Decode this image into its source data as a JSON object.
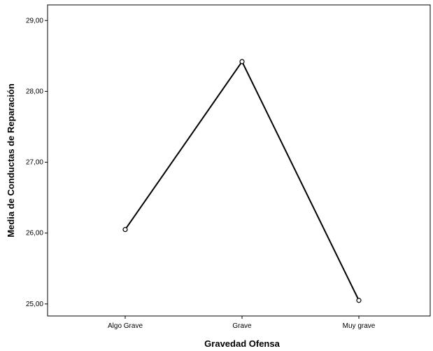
{
  "chart_data": {
    "type": "line",
    "categories": [
      "Algo Grave",
      "Grave",
      "Muy grave"
    ],
    "series": [
      {
        "values": [
          26.05,
          28.42,
          25.05
        ]
      }
    ],
    "xlabel": "Gravedad Ofensa",
    "ylabel": "Media de Conductas de Reparación",
    "ylim": [
      24.83,
      29.22
    ],
    "yticks": [
      25,
      26,
      27,
      28,
      29
    ],
    "ytick_labels": [
      "25,00",
      "26,00",
      "27,00",
      "28,00",
      "29,00"
    ],
    "grid": false,
    "colors": {
      "line": "#000000",
      "marker_fill": "#ffffff",
      "marker_stroke": "#000000",
      "axis": "#000000",
      "background": "#ffffff"
    }
  }
}
